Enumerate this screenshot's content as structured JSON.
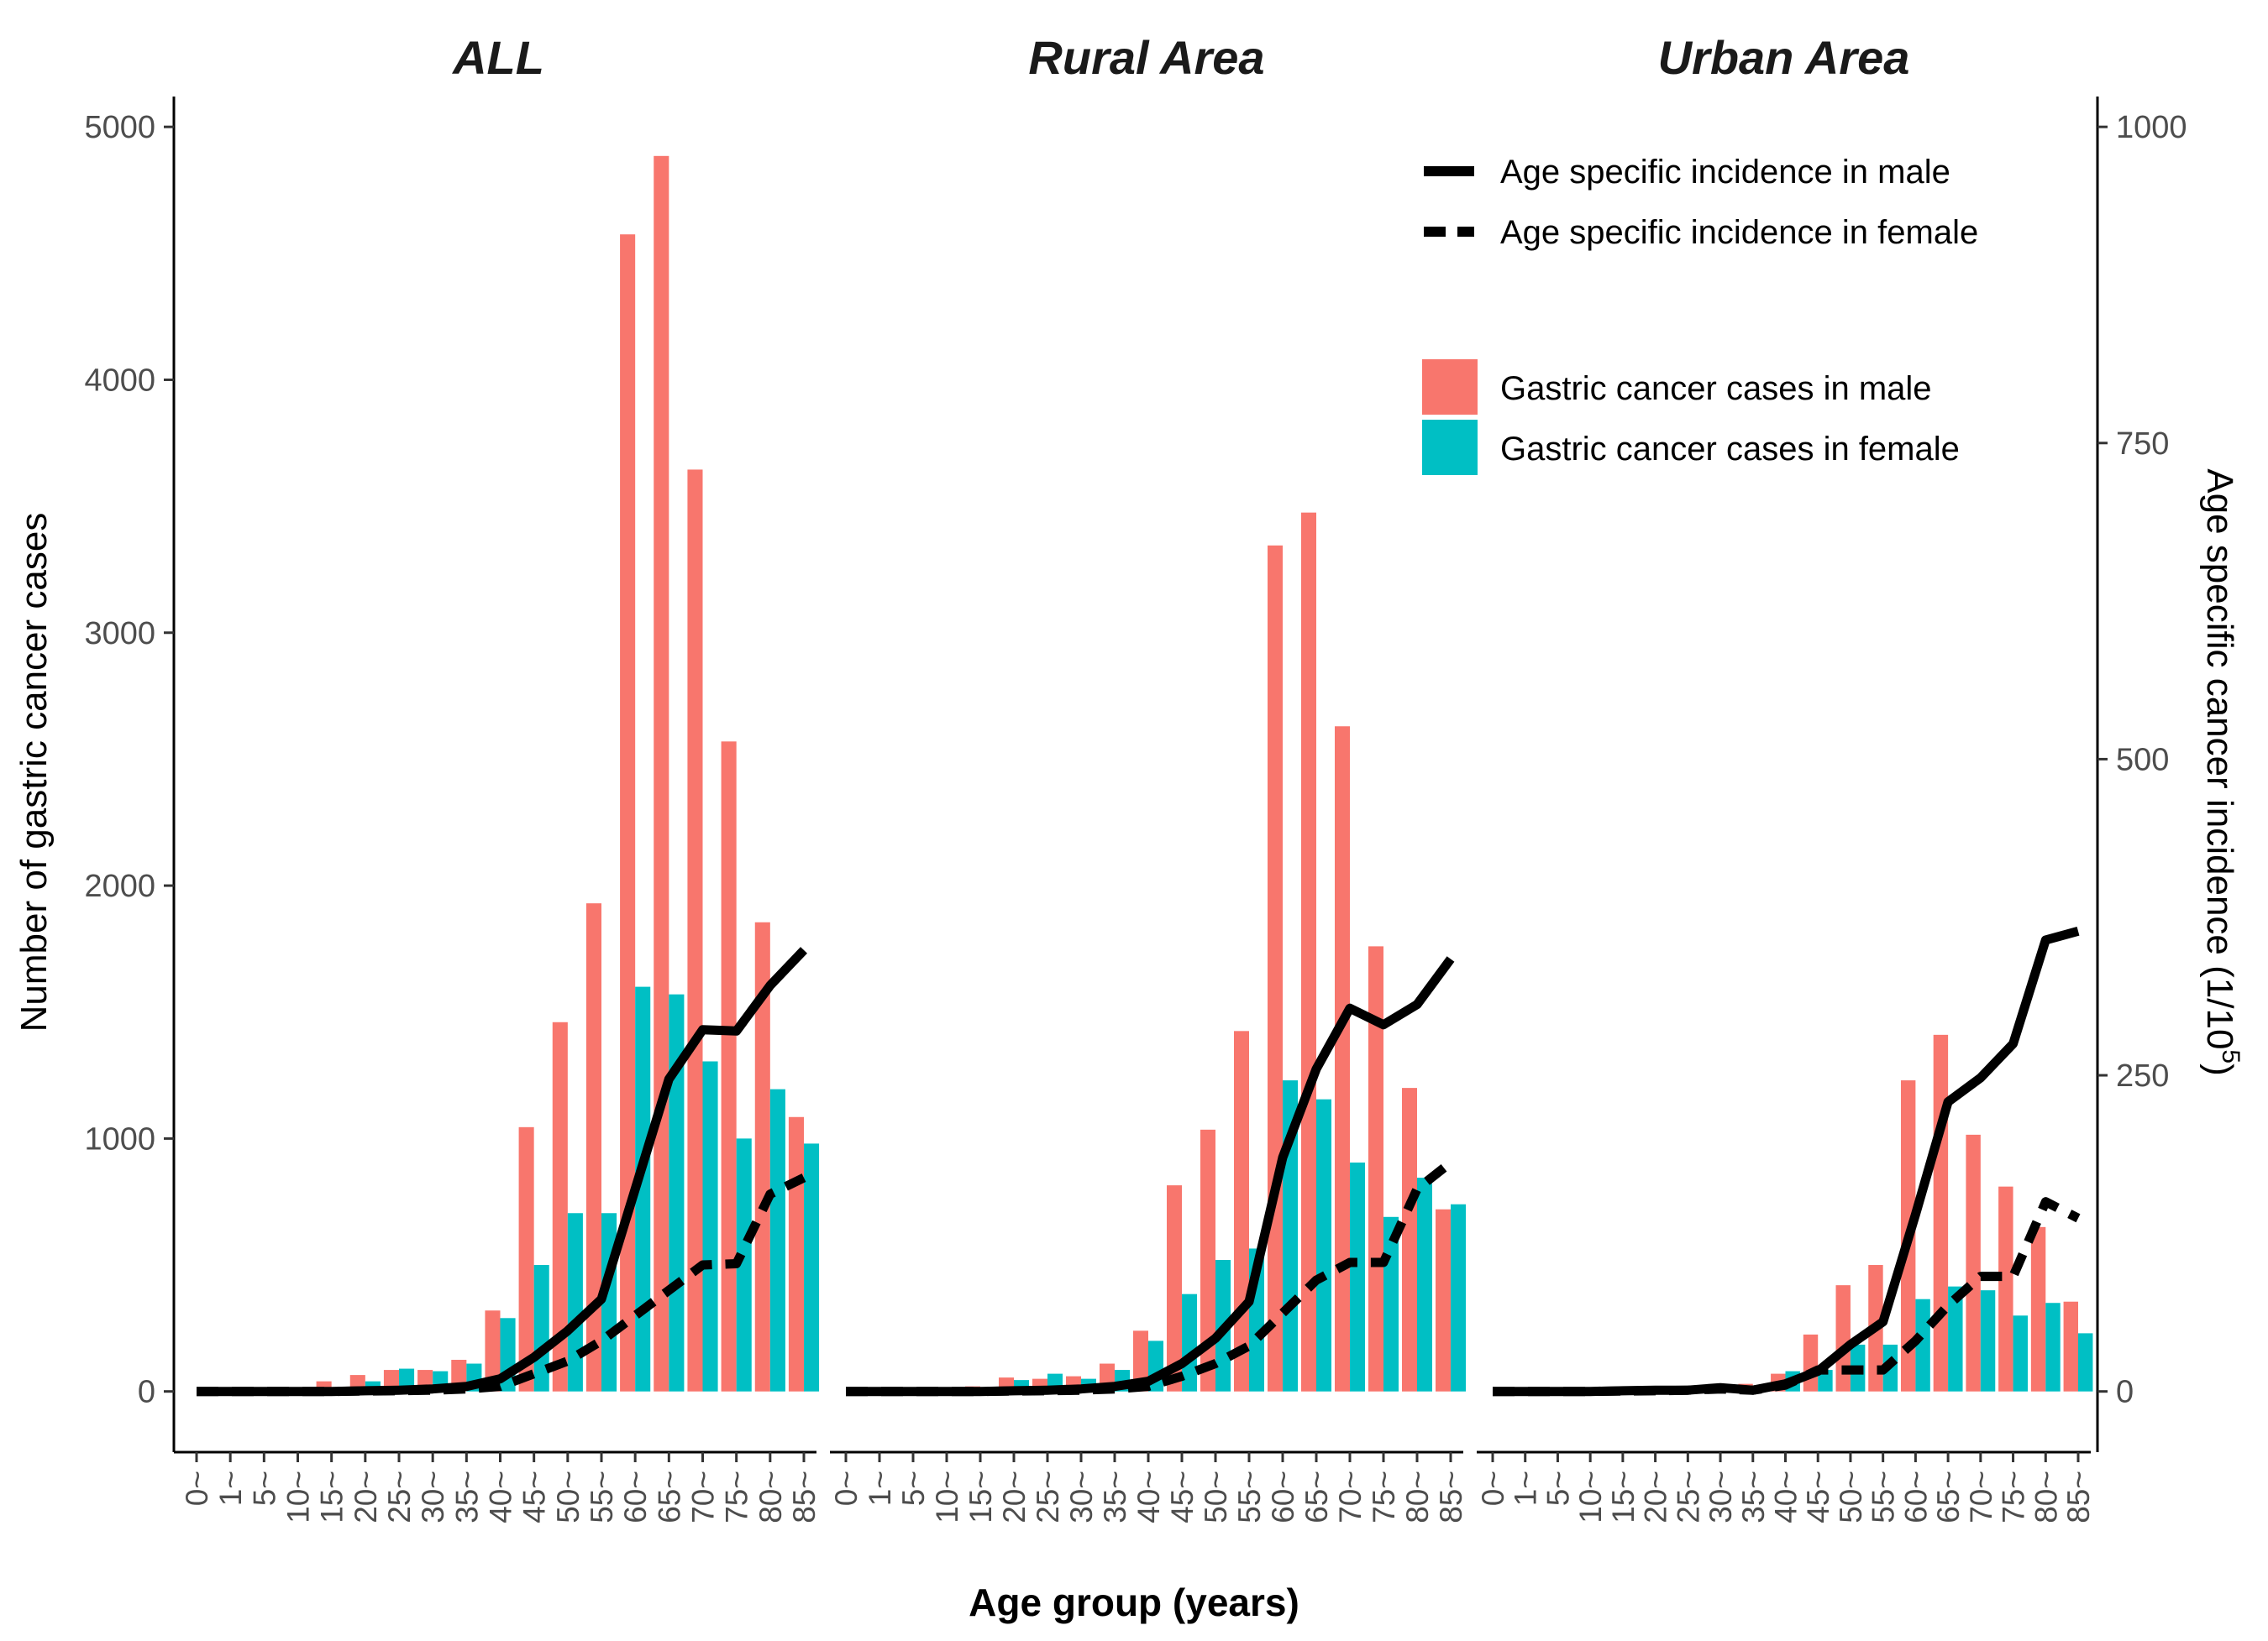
{
  "chart_data": {
    "type": "bar",
    "xlabel": "Age group (years)",
    "ylabel_left": "Number of gastric cancer cases",
    "ylabel_right": "Age specific cancer incidence (1/10",
    "ylabel_right_superscript": "5",
    "ylabel_right_suffix": ")",
    "ylim_left": [
      -240,
      5120
    ],
    "yticks_left": [
      0,
      1000,
      2000,
      3000,
      4000,
      5000
    ],
    "yticks_right": [
      0,
      250,
      500,
      750,
      1000
    ],
    "right_axis_scale": 0.2,
    "categories": [
      "0~",
      "1~",
      "5~",
      "10~",
      "15~",
      "20~",
      "25~",
      "30~",
      "35~",
      "40~",
      "45~",
      "50~",
      "55~",
      "60~",
      "65~",
      "70~",
      "75~",
      "80~",
      "85~"
    ],
    "legend": {
      "position": "top-right",
      "line_male": "Age specific incidence in male",
      "line_female": "Age specific incidence in female",
      "bar_male": "Gastric cancer cases in male",
      "bar_female": "Gastric cancer cases in female"
    },
    "colors": {
      "male_bar": "#F8766D",
      "female_bar": "#00BFC4",
      "line": "#000000"
    },
    "panels": [
      {
        "title": "ALL",
        "series": [
          {
            "name": "Gastric cancer cases in male",
            "type": "bar",
            "values": [
              0,
              0,
              0,
              5,
              40,
              65,
              85,
              85,
              125,
              320,
              1045,
              1460,
              1930,
              4575,
              4885,
              3645,
              2570,
              1855,
              1085
            ]
          },
          {
            "name": "Gastric cancer cases in female",
            "type": "bar",
            "values": [
              0,
              0,
              0,
              0,
              15,
              40,
              90,
              80,
              110,
              290,
              500,
              705,
              705,
              1600,
              1570,
              1305,
              1000,
              1195,
              980
            ]
          },
          {
            "name": "Age specific incidence in male",
            "type": "line",
            "dash": "solid",
            "values": [
              0,
              0,
              0,
              0,
              0,
              0.5,
              1,
              2,
              4,
              10,
              27,
              48,
              73,
              160,
              247,
              286,
              285,
              321,
              349
            ]
          },
          {
            "name": "Age specific incidence in female",
            "type": "line",
            "dash": "dashed",
            "values": [
              0,
              0,
              0,
              0,
              0,
              0.3,
              0.6,
              1,
              2,
              4,
              14,
              24,
              40,
              60,
              80,
              100,
              101,
              156,
              169
            ]
          }
        ]
      },
      {
        "title": "Rural Area",
        "series": [
          {
            "name": "Gastric cancer cases in male",
            "type": "bar",
            "values": [
              0,
              0,
              0,
              5,
              20,
              55,
              50,
              60,
              110,
              240,
              815,
              1035,
              1425,
              3345,
              3475,
              2630,
              1760,
              1200,
              720
            ]
          },
          {
            "name": "Gastric cancer cases in female",
            "type": "bar",
            "values": [
              0,
              0,
              0,
              0,
              10,
              45,
              70,
              50,
              85,
              200,
              385,
              520,
              565,
              1230,
              1155,
              905,
              690,
              845,
              740
            ]
          },
          {
            "name": "Age specific incidence in male",
            "type": "line",
            "dash": "solid",
            "values": [
              0,
              0,
              0,
              0,
              0,
              0.5,
              1,
              2,
              4,
              8,
              22,
              42,
              71,
              185,
              255,
              303,
              290,
              306,
              342
            ]
          },
          {
            "name": "Age specific incidence in female",
            "type": "line",
            "dash": "dashed",
            "values": [
              0,
              0,
              0,
              0,
              0,
              0.3,
              0.6,
              1,
              2,
              4,
              12,
              22,
              36,
              62,
              88,
              102,
              102,
              160,
              181
            ]
          }
        ]
      },
      {
        "title": "Urban Area",
        "series": [
          {
            "name": "Gastric cancer cases in male",
            "type": "bar",
            "values": [
              0,
              0,
              0,
              0,
              0,
              10,
              15,
              20,
              30,
              70,
              225,
              420,
              500,
              1230,
              1410,
              1015,
              810,
              650,
              355
            ]
          },
          {
            "name": "Gastric cancer cases in female",
            "type": "bar",
            "values": [
              0,
              0,
              0,
              0,
              0,
              5,
              10,
              15,
              20,
              80,
              85,
              185,
              185,
              365,
              415,
              400,
              300,
              350,
              230
            ]
          },
          {
            "name": "Age specific incidence in male",
            "type": "line",
            "dash": "solid",
            "values": [
              0,
              0,
              0,
              0,
              0.5,
              1,
              1,
              3,
              1,
              6,
              16,
              37,
              55,
              140,
              229,
              248,
              275,
              357,
              364
            ]
          },
          {
            "name": "Age specific incidence in female",
            "type": "line",
            "dash": "dashed",
            "values": [
              0,
              0,
              0,
              0,
              0.3,
              0.5,
              1,
              2,
              1,
              5,
              17,
              17,
              17,
              40,
              68,
              91,
              91,
              150,
              137
            ]
          }
        ]
      }
    ]
  }
}
